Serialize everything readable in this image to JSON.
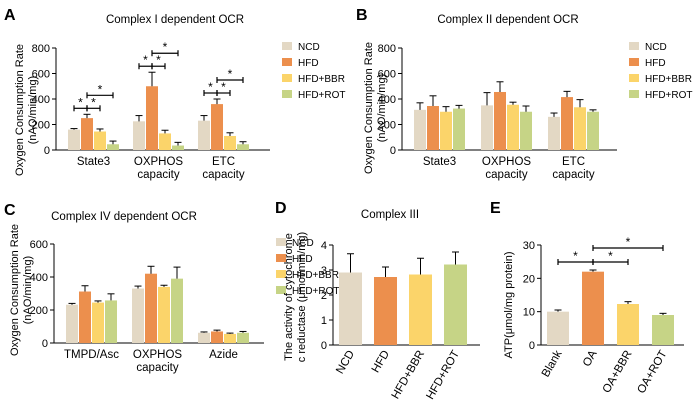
{
  "colors": {
    "NCD": "#e3d8c4",
    "HFD": "#ec8f4d",
    "HFD+BBR": "#fbd46a",
    "HFD+ROT": "#c6d486",
    "Blank": "#e3d8c4",
    "OA": "#ec8f4d",
    "OA+BBR": "#fbd46a",
    "OA+ROT": "#c6d486",
    "axis": "#000000"
  },
  "chart_data": [
    {
      "id": "A",
      "type": "bar",
      "panel_label": "A",
      "title": "Complex I dependent OCR",
      "ylabel": [
        "Oxygen Consumption Rate",
        "(nAO/min/mg)"
      ],
      "ylim": [
        0,
        800
      ],
      "yticks": [
        0,
        200,
        400,
        600,
        800
      ],
      "categories": [
        [
          "State3"
        ],
        [
          "OXPHOS",
          "capacity"
        ],
        [
          "ETC",
          "capacity"
        ]
      ],
      "legend": [
        "NCD",
        "HFD",
        "HFD+BBR",
        "HFD+ROT"
      ],
      "series": [
        {
          "name": "NCD",
          "values": [
            160,
            225,
            230
          ],
          "errors": [
            8,
            45,
            40
          ]
        },
        {
          "name": "HFD",
          "values": [
            250,
            500,
            360
          ],
          "errors": [
            30,
            110,
            40
          ]
        },
        {
          "name": "HFD+BBR",
          "values": [
            145,
            130,
            110
          ],
          "errors": [
            20,
            25,
            25
          ]
        },
        {
          "name": "HFD+ROT",
          "values": [
            45,
            35,
            45
          ],
          "errors": [
            25,
            25,
            20
          ]
        }
      ],
      "significance": [
        {
          "group": 0,
          "from": 0,
          "to": 1,
          "level": 0,
          "label": "*"
        },
        {
          "group": 0,
          "from": 1,
          "to": 2,
          "level": 0,
          "label": "*"
        },
        {
          "group": 0,
          "from": 1,
          "to": 3,
          "level": 1,
          "label": "*"
        },
        {
          "group": 1,
          "from": 0,
          "to": 1,
          "level": 0,
          "label": "*"
        },
        {
          "group": 1,
          "from": 1,
          "to": 2,
          "level": 0,
          "label": "*"
        },
        {
          "group": 1,
          "from": 1,
          "to": 3,
          "level": 1,
          "label": "*"
        },
        {
          "group": 2,
          "from": 0,
          "to": 1,
          "level": 0,
          "label": "*"
        },
        {
          "group": 2,
          "from": 1,
          "to": 2,
          "level": 0,
          "label": "*"
        },
        {
          "group": 2,
          "from": 1,
          "to": 3,
          "level": 1,
          "label": "*"
        }
      ]
    },
    {
      "id": "B",
      "type": "bar",
      "panel_label": "B",
      "title": "Complex II dependent OCR",
      "ylabel": [
        "Oxygen Consumption Rate",
        "(nAO/min/mg)"
      ],
      "ylim": [
        0,
        800
      ],
      "yticks": [
        0,
        200,
        400,
        600,
        800
      ],
      "categories": [
        [
          "State3"
        ],
        [
          "OXPHOS",
          "capacity"
        ],
        [
          "ETC",
          "capacity"
        ]
      ],
      "legend": [
        "NCD",
        "HFD",
        "HFD+BBR",
        "HFD+ROT"
      ],
      "series": [
        {
          "name": "NCD",
          "values": [
            315,
            350,
            260
          ],
          "errors": [
            55,
            100,
            30
          ]
        },
        {
          "name": "HFD",
          "values": [
            345,
            455,
            415
          ],
          "errors": [
            80,
            80,
            45
          ]
        },
        {
          "name": "HFD+BBR",
          "values": [
            300,
            355,
            335
          ],
          "errors": [
            40,
            20,
            60
          ]
        },
        {
          "name": "HFD+ROT",
          "values": [
            325,
            300,
            300
          ],
          "errors": [
            25,
            45,
            15
          ]
        }
      ],
      "significance": []
    },
    {
      "id": "C",
      "type": "bar",
      "panel_label": "C",
      "title": "Complex IV dependent OCR",
      "ylabel": [
        "Oxygen Consumption Rate",
        "(nAO/min/mg)"
      ],
      "ylim": [
        0,
        600
      ],
      "yticks": [
        0,
        200,
        400,
        600
      ],
      "categories": [
        [
          "TMPD/Asc"
        ],
        [
          "OXPHOS",
          "capacity"
        ],
        [
          "Azide"
        ]
      ],
      "legend": [
        "NCD",
        "HFD",
        "HFD+BBR",
        "HFD+ROT"
      ],
      "series": [
        {
          "name": "NCD",
          "values": [
            232,
            330,
            62
          ],
          "errors": [
            8,
            15,
            5
          ]
        },
        {
          "name": "HFD",
          "values": [
            312,
            420,
            70
          ],
          "errors": [
            35,
            45,
            8
          ]
        },
        {
          "name": "HFD+BBR",
          "values": [
            245,
            340,
            55
          ],
          "errors": [
            10,
            10,
            5
          ]
        },
        {
          "name": "HFD+ROT",
          "values": [
            258,
            390,
            62
          ],
          "errors": [
            40,
            70,
            8
          ]
        }
      ],
      "significance": []
    },
    {
      "id": "D",
      "type": "bar",
      "panel_label": "D",
      "title": "Complex III",
      "ylabel": [
        "The activity of cytochrome",
        "c reductase (μmol/min/mg)"
      ],
      "ylim": [
        0,
        4
      ],
      "yticks": [
        0,
        1,
        2,
        3,
        4
      ],
      "categories": [
        "NCD",
        "HFD",
        "HFD+BBR",
        "HFD+ROT"
      ],
      "values": [
        2.9,
        2.72,
        2.82,
        3.22
      ],
      "errors": [
        0.75,
        0.4,
        0.65,
        0.5
      ],
      "significance": []
    },
    {
      "id": "E",
      "type": "bar",
      "panel_label": "E",
      "title": "",
      "ylabel": [
        "ATP(μmol/mg protein)"
      ],
      "ylim": [
        0,
        30
      ],
      "yticks": [
        0,
        10,
        20,
        30
      ],
      "categories": [
        "Blank",
        "OA",
        "OA+BBR",
        "OA+ROT"
      ],
      "values": [
        10,
        22,
        12.3,
        9
      ],
      "errors": [
        0.5,
        0.5,
        0.7,
        0.5
      ],
      "significance": [
        {
          "from": 0,
          "to": 1,
          "level": 0,
          "label": "*"
        },
        {
          "from": 1,
          "to": 2,
          "level": 0,
          "label": "*"
        },
        {
          "from": 1,
          "to": 3,
          "level": 1,
          "label": "*"
        }
      ]
    }
  ]
}
